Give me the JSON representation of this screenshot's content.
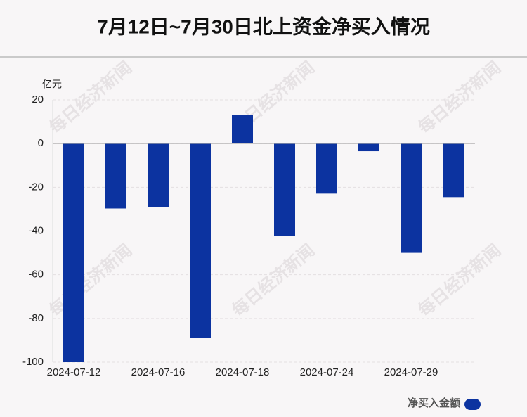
{
  "chart_data": {
    "type": "bar",
    "title": "7月12日~7月30日北上资金净买入情况",
    "y_unit": "亿元",
    "watermark": "每日经济新闻",
    "categories": [
      "2024-07-12",
      null,
      "2024-07-16",
      null,
      "2024-07-18",
      null,
      "2024-07-24",
      null,
      "2024-07-29",
      null
    ],
    "series": [
      {
        "name": "净买入金额",
        "color": "#0c33a0",
        "values": [
          -100,
          -29.7,
          -29.0,
          -89.0,
          13.2,
          -42.3,
          -22.9,
          -3.5,
          -50.0,
          -24.5
        ]
      }
    ],
    "ylim": [
      -100,
      20
    ],
    "yticks": [
      20,
      0,
      -20,
      -40,
      -60,
      -80,
      -100
    ],
    "grid": true
  }
}
